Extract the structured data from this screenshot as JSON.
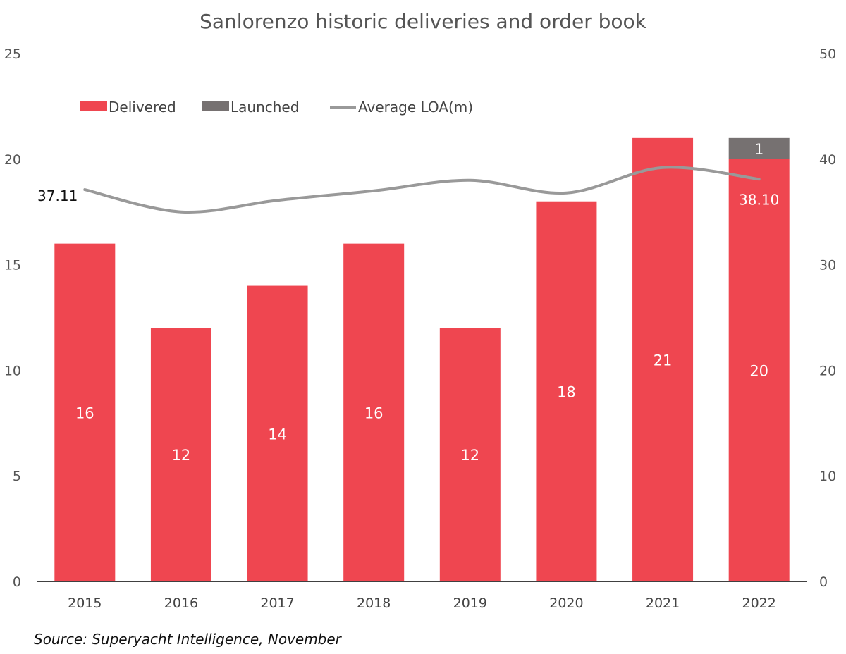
{
  "chart_data": {
    "type": "bar",
    "title": "Sanlorenzo historic deliveries and order book",
    "categories": [
      "2015",
      "2016",
      "2017",
      "2018",
      "2019",
      "2020",
      "2021",
      "2022"
    ],
    "series": [
      {
        "name": "Delivered",
        "kind": "bar",
        "stack": "a",
        "color": "#ef4650",
        "values": [
          16,
          12,
          14,
          16,
          12,
          18,
          21,
          20
        ],
        "labels": [
          "16",
          "12",
          "14",
          "16",
          "12",
          "18",
          "21",
          "20"
        ]
      },
      {
        "name": "Launched",
        "kind": "bar",
        "stack": "a",
        "color": "#767171",
        "values": [
          0,
          0,
          0,
          0,
          0,
          0,
          0,
          1
        ],
        "labels": [
          "",
          "",
          "",
          "",
          "",
          "",
          "",
          "1"
        ]
      },
      {
        "name": "Average LOA(m)",
        "kind": "line",
        "axis": "right",
        "color": "#999999",
        "values": [
          37.11,
          35.0,
          36.1,
          37.0,
          38.0,
          36.8,
          39.2,
          38.1
        ]
      }
    ],
    "line_labels": [
      {
        "index": 0,
        "text": "37.11",
        "color": "#111111"
      },
      {
        "index": 7,
        "text": "38.10",
        "color": "#ffffff"
      }
    ],
    "y_left": {
      "min": 0,
      "max": 25,
      "ticks": [
        "0",
        "5",
        "10",
        "15",
        "20",
        "25"
      ]
    },
    "y_right": {
      "min": 0,
      "max": 50,
      "ticks": [
        "0",
        "10",
        "20",
        "30",
        "40",
        "50"
      ]
    },
    "legend": "top-left",
    "grid": false
  },
  "source": "Source: Superyacht Intelligence, November"
}
